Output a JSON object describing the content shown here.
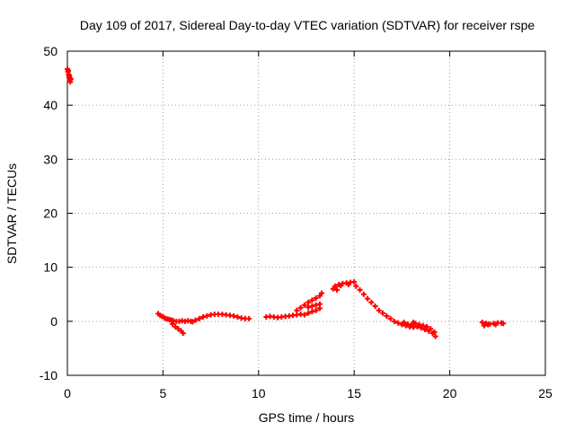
{
  "chart_data": {
    "type": "scatter",
    "title": "Day 109 of 2017, Sidereal Day-to-day VTEC variation (SDTVAR) for receiver rspe",
    "xlabel": "GPS time / hours",
    "ylabel": "SDTVAR / TECUs",
    "xlim": [
      0,
      25
    ],
    "ylim": [
      -10,
      50
    ],
    "xticks": [
      0,
      5,
      10,
      15,
      20,
      25
    ],
    "yticks": [
      -10,
      0,
      10,
      20,
      30,
      40,
      50
    ],
    "grid": true,
    "marker": "plus",
    "colors": {
      "points": "#ff0000",
      "grid": "#a0a0a0",
      "axes": "#000000"
    },
    "series": [
      {
        "name": "SDTVAR",
        "points": [
          [
            0.0,
            46.7
          ],
          [
            0.03,
            46.2
          ],
          [
            0.06,
            45.7
          ],
          [
            0.09,
            45.2
          ],
          [
            0.12,
            44.7
          ],
          [
            0.15,
            44.3
          ],
          [
            0.18,
            44.8
          ],
          [
            0.05,
            46.4
          ],
          [
            0.1,
            45.5
          ],
          [
            0.14,
            45.0
          ],
          [
            4.75,
            1.4
          ],
          [
            4.85,
            1.1
          ],
          [
            4.95,
            0.9
          ],
          [
            5.05,
            0.7
          ],
          [
            5.15,
            0.5
          ],
          [
            5.25,
            0.4
          ],
          [
            5.35,
            0.3
          ],
          [
            5.45,
            0.2
          ],
          [
            5.55,
            0.1
          ],
          [
            5.7,
            0.0
          ],
          [
            5.85,
            0.0
          ],
          [
            6.0,
            0.1
          ],
          [
            6.15,
            0.0
          ],
          [
            6.3,
            0.1
          ],
          [
            6.45,
            0.0
          ],
          [
            6.55,
            -0.1
          ],
          [
            5.5,
            -0.5
          ],
          [
            5.65,
            -1.0
          ],
          [
            5.8,
            -1.4
          ],
          [
            5.95,
            -1.8
          ],
          [
            6.05,
            -2.2
          ],
          [
            6.7,
            0.2
          ],
          [
            6.9,
            0.5
          ],
          [
            7.1,
            0.8
          ],
          [
            7.3,
            1.0
          ],
          [
            7.5,
            1.2
          ],
          [
            7.7,
            1.3
          ],
          [
            7.9,
            1.3
          ],
          [
            8.1,
            1.3
          ],
          [
            8.3,
            1.2
          ],
          [
            8.5,
            1.1
          ],
          [
            8.7,
            1.0
          ],
          [
            8.9,
            0.8
          ],
          [
            9.1,
            0.6
          ],
          [
            9.3,
            0.5
          ],
          [
            9.5,
            0.5
          ],
          [
            10.4,
            0.8
          ],
          [
            10.6,
            0.9
          ],
          [
            10.8,
            0.8
          ],
          [
            11.0,
            0.7
          ],
          [
            11.2,
            0.8
          ],
          [
            11.4,
            0.9
          ],
          [
            11.6,
            1.0
          ],
          [
            11.8,
            1.1
          ],
          [
            12.0,
            1.2
          ],
          [
            12.2,
            1.3
          ],
          [
            12.4,
            1.2
          ],
          [
            12.6,
            1.5
          ],
          [
            12.8,
            1.8
          ],
          [
            13.0,
            2.0
          ],
          [
            13.2,
            2.4
          ],
          [
            12.0,
            2.0
          ],
          [
            12.2,
            2.5
          ],
          [
            12.4,
            3.0
          ],
          [
            12.6,
            3.5
          ],
          [
            12.8,
            3.9
          ],
          [
            13.0,
            4.3
          ],
          [
            13.2,
            4.7
          ],
          [
            13.3,
            5.2
          ],
          [
            12.6,
            2.6
          ],
          [
            12.8,
            2.8
          ],
          [
            13.0,
            3.0
          ],
          [
            13.2,
            3.2
          ],
          [
            13.9,
            6.0
          ],
          [
            14.0,
            6.5
          ],
          [
            14.2,
            6.8
          ],
          [
            14.4,
            7.0
          ],
          [
            14.6,
            7.1
          ],
          [
            14.8,
            7.2
          ],
          [
            15.0,
            7.3
          ],
          [
            14.1,
            5.8
          ],
          [
            14.3,
            6.6
          ],
          [
            14.7,
            6.8
          ],
          [
            15.1,
            6.5
          ],
          [
            15.3,
            5.8
          ],
          [
            15.5,
            5.0
          ],
          [
            15.7,
            4.2
          ],
          [
            15.9,
            3.5
          ],
          [
            16.1,
            2.8
          ],
          [
            16.3,
            2.0
          ],
          [
            16.5,
            1.5
          ],
          [
            16.7,
            1.0
          ],
          [
            16.9,
            0.5
          ],
          [
            17.1,
            0.0
          ],
          [
            17.3,
            -0.3
          ],
          [
            17.5,
            -0.6
          ],
          [
            17.7,
            -0.8
          ],
          [
            17.9,
            -1.0
          ],
          [
            18.1,
            -1.1
          ],
          [
            18.3,
            -1.0
          ],
          [
            18.5,
            -1.2
          ],
          [
            18.7,
            -1.5
          ],
          [
            18.9,
            -1.8
          ],
          [
            19.1,
            -2.2
          ],
          [
            19.25,
            -2.8
          ],
          [
            17.6,
            -0.2
          ],
          [
            17.8,
            -0.5
          ],
          [
            18.0,
            -0.8
          ],
          [
            18.2,
            -0.4
          ],
          [
            18.4,
            -0.6
          ],
          [
            18.6,
            -0.8
          ],
          [
            18.8,
            -1.0
          ],
          [
            19.0,
            -1.4
          ],
          [
            19.2,
            -2.0
          ],
          [
            18.1,
            -0.2
          ],
          [
            21.7,
            -0.2
          ],
          [
            21.9,
            -0.4
          ],
          [
            22.1,
            -0.5
          ],
          [
            22.3,
            -0.4
          ],
          [
            22.5,
            -0.3
          ],
          [
            22.7,
            -0.3
          ],
          [
            21.8,
            -0.8
          ],
          [
            22.0,
            -0.6
          ],
          [
            22.4,
            -0.6
          ],
          [
            22.8,
            -0.4
          ]
        ]
      }
    ]
  }
}
